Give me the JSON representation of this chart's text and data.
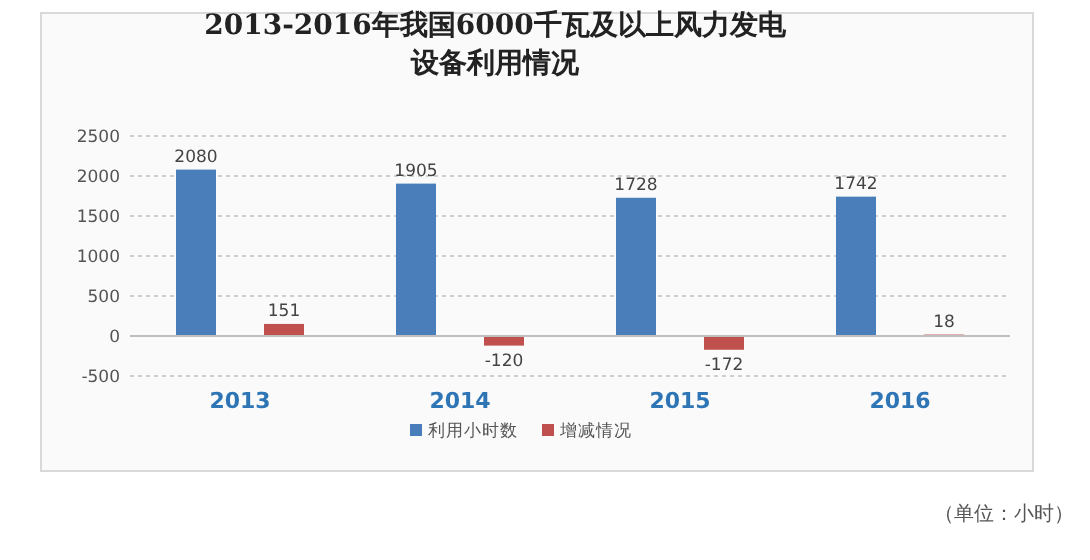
{
  "chart_data": {
    "type": "bar",
    "title": "2013-2016年我国6000千瓦及以上风力发电设备利用情况",
    "categories": [
      "2013",
      "2014",
      "2015",
      "2016"
    ],
    "series": [
      {
        "name": "利用小时数",
        "color": "#4a7ebb",
        "values": [
          2080,
          1905,
          1728,
          1742
        ]
      },
      {
        "name": "增减情况",
        "color": "#c0504d",
        "values": [
          151,
          -120,
          -172,
          18
        ]
      }
    ],
    "ylim": [
      -500,
      2500
    ],
    "yticks": [
      -500,
      0,
      500,
      1000,
      1500,
      2000,
      2500
    ],
    "grid": "y",
    "legend": "bottom",
    "data_labels": true,
    "annotations": [
      "（单位：小时）"
    ]
  }
}
